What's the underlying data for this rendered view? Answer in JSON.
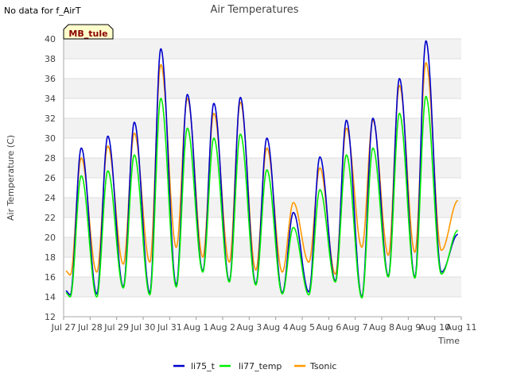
{
  "no_data_note": "No data for f_AirT",
  "badge": "MB_tule",
  "chart_data": {
    "type": "line",
    "title": "Air Temperatures",
    "xlabel": "Time",
    "ylabel": "Air Temperature (C)",
    "ylim": [
      12,
      40
    ],
    "y_ticks": [
      12,
      14,
      16,
      18,
      20,
      22,
      24,
      26,
      28,
      30,
      32,
      34,
      36,
      38,
      40
    ],
    "xlim": [
      "2023-07-27",
      "2023-08-11"
    ],
    "x_tick_labels": [
      "Jul 27",
      "Jul 28",
      "Jul 29",
      "Jul 30",
      "Jul 31",
      "Aug 1",
      "Aug 2",
      "Aug 3",
      "Aug 4",
      "Aug 5",
      "Aug 6",
      "Aug 7",
      "Aug 8",
      "Aug 9",
      "Aug 10",
      "Aug 11"
    ],
    "grid": true,
    "grid_bands": true,
    "legend_position": "bottom",
    "daily_min_time": "06:00",
    "daily_max_time": "16:00",
    "series_start": "2023-07-27 02:00",
    "series_end": "2023-08-10 21:00",
    "series": [
      {
        "name": "li75_t",
        "color": "#0000cc",
        "daily_min": [
          14.2,
          14.3,
          15.0,
          14.4,
          15.2,
          16.6,
          15.6,
          15.3,
          14.4,
          14.5,
          15.6,
          14.0,
          16.1,
          16.0,
          16.5
        ],
        "daily_max": [
          29.0,
          30.2,
          31.6,
          39.0,
          34.4,
          33.5,
          34.1,
          30.0,
          22.5,
          28.1,
          31.8,
          32.0,
          36.0,
          39.8
        ],
        "end_value": 20.3
      },
      {
        "name": "li77_temp",
        "color": "#00ee00",
        "daily_min": [
          14.0,
          14.0,
          14.9,
          14.2,
          15.0,
          16.5,
          15.5,
          15.2,
          14.3,
          14.2,
          15.5,
          13.9,
          16.0,
          15.9,
          16.3
        ],
        "daily_max": [
          26.2,
          26.7,
          28.3,
          34.0,
          31.0,
          30.0,
          30.4,
          26.8,
          21.0,
          24.8,
          28.3,
          29.0,
          32.5,
          34.2
        ],
        "end_value": 20.7
      },
      {
        "name": "Tsonic",
        "color": "#ff9900",
        "daily_min": [
          16.2,
          16.5,
          17.3,
          17.5,
          19.0,
          18.0,
          17.5,
          16.7,
          16.5,
          17.5,
          16.3,
          19.0,
          18.2,
          18.5,
          18.7
        ],
        "daily_max": [
          28.0,
          29.2,
          30.5,
          37.4,
          34.0,
          32.5,
          33.6,
          29.0,
          23.5,
          27.0,
          31.0,
          31.8,
          35.3,
          37.6
        ],
        "end_value": 23.7
      }
    ]
  }
}
